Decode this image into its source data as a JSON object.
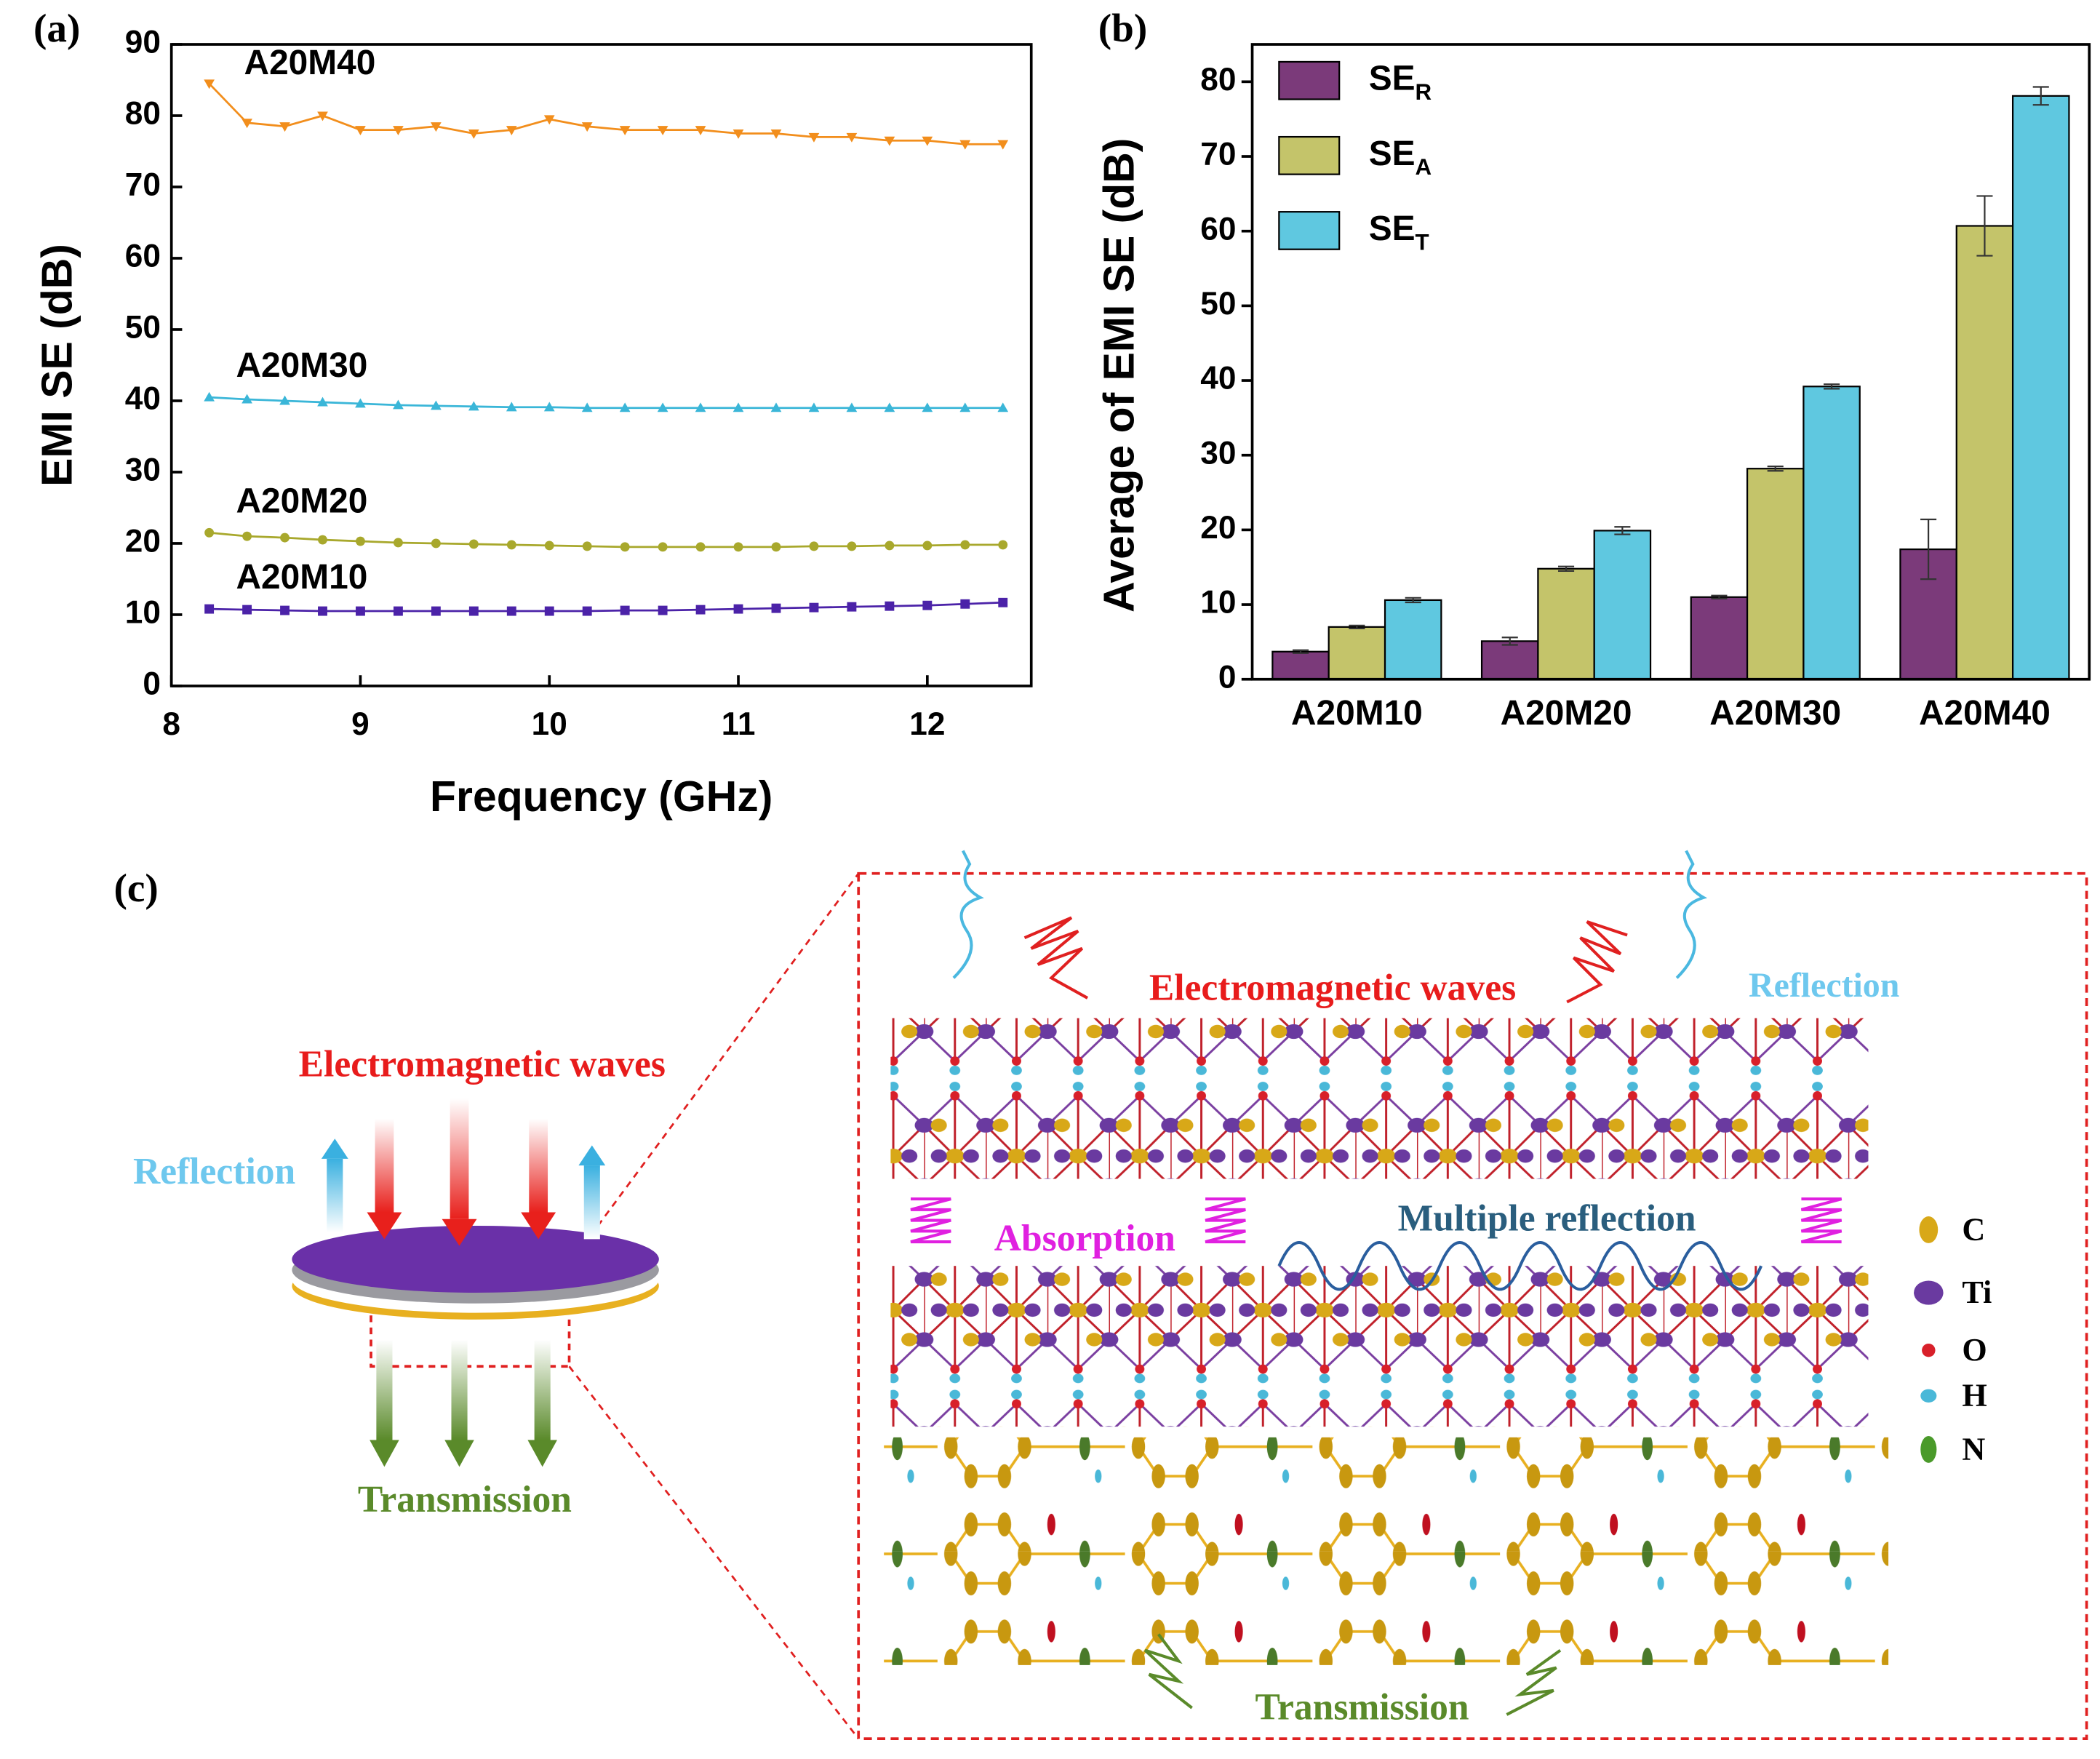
{
  "chart_data": [
    {
      "type": "line",
      "panel_label": "(a)",
      "xlabel": "Frequency (GHz)",
      "ylabel": "EMI SE (dB)",
      "x": [
        8.2,
        8.4,
        8.6,
        8.8,
        9.0,
        9.2,
        9.4,
        9.6,
        9.8,
        10.0,
        10.2,
        10.4,
        10.6,
        10.8,
        11.0,
        11.2,
        11.4,
        11.6,
        11.8,
        12.0,
        12.2,
        12.4
      ],
      "series": [
        {
          "name": "A20M40",
          "color": "#f28e1c",
          "marker": "triangle-down",
          "values": [
            84.5,
            79,
            78.5,
            80,
            78,
            78,
            78.5,
            77.5,
            78,
            79.5,
            78.5,
            78,
            78,
            78,
            77.5,
            77.5,
            77,
            77,
            76.5,
            76.5,
            76,
            76
          ]
        },
        {
          "name": "A20M30",
          "color": "#3ab6d8",
          "marker": "triangle-up",
          "values": [
            40.5,
            40.2,
            40,
            39.8,
            39.6,
            39.4,
            39.3,
            39.2,
            39.1,
            39.1,
            39,
            39,
            39,
            39,
            39,
            39,
            39,
            39,
            39,
            39,
            39,
            39
          ]
        },
        {
          "name": "A20M20",
          "color": "#a8a82c",
          "marker": "circle",
          "values": [
            21.5,
            21,
            20.8,
            20.5,
            20.3,
            20.1,
            20,
            19.9,
            19.8,
            19.7,
            19.6,
            19.5,
            19.5,
            19.5,
            19.5,
            19.5,
            19.6,
            19.6,
            19.7,
            19.7,
            19.8,
            19.8
          ]
        },
        {
          "name": "A20M10",
          "color": "#4b22a8",
          "marker": "square",
          "values": [
            10.8,
            10.7,
            10.6,
            10.5,
            10.5,
            10.5,
            10.5,
            10.5,
            10.5,
            10.5,
            10.5,
            10.6,
            10.6,
            10.7,
            10.8,
            10.9,
            11,
            11.1,
            11.2,
            11.3,
            11.5,
            11.7
          ]
        }
      ],
      "xlim": [
        8,
        12.55
      ],
      "xticks": [
        8,
        9,
        10,
        11,
        12
      ],
      "ylim": [
        0,
        90
      ],
      "yticks": [
        0,
        10,
        20,
        30,
        40,
        50,
        60,
        70,
        80,
        90
      ],
      "grid": false
    },
    {
      "type": "bar",
      "panel_label": "(b)",
      "ylabel": "Average of EMI SE (dB)",
      "categories": [
        "A20M10",
        "A20M20",
        "A20M30",
        "A20M40"
      ],
      "series": [
        {
          "name": "SER",
          "color": "#7b3a7a",
          "values": [
            3.7,
            5.1,
            11,
            17.4
          ],
          "errors": [
            0.2,
            0.5,
            0.2,
            4
          ]
        },
        {
          "name": "SEA",
          "color": "#c4c46a",
          "values": [
            7,
            14.8,
            28.2,
            60.7
          ],
          "errors": [
            0.2,
            0.3,
            0.3,
            4
          ]
        },
        {
          "name": "SET",
          "color": "#5fc8e0",
          "values": [
            10.6,
            19.9,
            39.2,
            78.1
          ],
          "errors": [
            0.3,
            0.5,
            0.3,
            1.2
          ]
        }
      ],
      "ylim": [
        0,
        85
      ],
      "yticks": [
        0,
        10,
        20,
        30,
        40,
        50,
        60,
        70,
        80
      ],
      "legend": "upper left",
      "grid": false
    }
  ],
  "diagram": {
    "panel_label": "(c)",
    "left": {
      "incident": "Electromagnetic waves",
      "reflection": "Reflection",
      "transmission": "Transmission"
    },
    "right": {
      "incident": "Electromagnetic waves",
      "reflection": "Reflection",
      "absorption": "Absorption",
      "multiple": "Multiple reflection",
      "transmission": "Transmission"
    },
    "legend": [
      "C",
      "Ti",
      "O",
      "H",
      "N"
    ]
  }
}
